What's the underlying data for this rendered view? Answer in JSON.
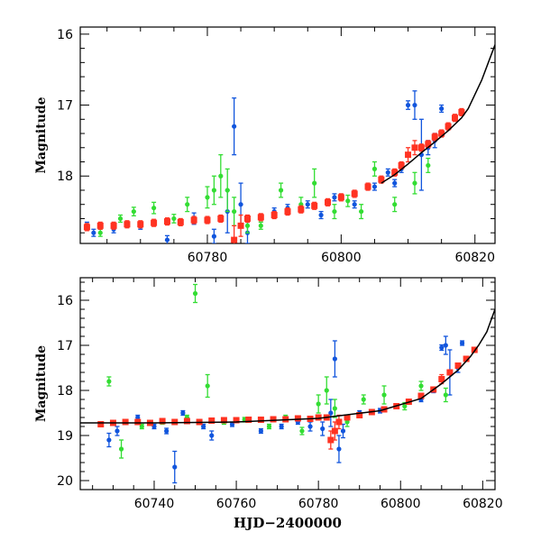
{
  "colors": {
    "blue": "#1155dd",
    "green": "#33dd33",
    "red": "#ff3322",
    "fit": "#000000"
  },
  "chart_data": [
    {
      "type": "scatter",
      "title": "",
      "xlabel": "",
      "ylabel": "Magnitude",
      "xlim": [
        60761,
        60823
      ],
      "ylim": [
        18.95,
        15.9
      ],
      "y_inverted": true,
      "xticks": [
        60780,
        60800,
        60820
      ],
      "yticks": [
        16,
        17,
        18
      ],
      "grid": false,
      "series": [
        {
          "color_key": "blue",
          "points": [
            [
              60762,
              18.7,
              0.05
            ],
            [
              60763,
              18.8,
              0.05
            ],
            [
              60766,
              18.75,
              0.05
            ],
            [
              60770,
              18.7,
              0.05
            ],
            [
              60774,
              18.9,
              0.06
            ],
            [
              60778,
              18.6,
              0.08
            ],
            [
              60781,
              18.85,
              0.1
            ],
            [
              60783,
              18.5,
              0.3
            ],
            [
              60784,
              17.3,
              0.4
            ],
            [
              60785,
              18.4,
              0.3
            ],
            [
              60786,
              18.8,
              0.15
            ],
            [
              60790,
              18.5,
              0.05
            ],
            [
              60792,
              18.45,
              0.05
            ],
            [
              60795,
              18.4,
              0.05
            ],
            [
              60797,
              18.55,
              0.05
            ],
            [
              60799,
              18.3,
              0.05
            ],
            [
              60802,
              18.4,
              0.05
            ],
            [
              60805,
              18.15,
              0.05
            ],
            [
              60807,
              17.95,
              0.05
            ],
            [
              60808,
              18.1,
              0.05
            ],
            [
              60809,
              17.9,
              0.05
            ],
            [
              60810,
              17.0,
              0.06
            ],
            [
              60811,
              17.0,
              0.2
            ],
            [
              60812,
              17.7,
              0.5
            ],
            [
              60813,
              17.6,
              0.1
            ],
            [
              60814,
              17.5,
              0.1
            ],
            [
              60815,
              17.05,
              0.05
            ]
          ]
        },
        {
          "color_key": "green",
          "points": [
            [
              60764,
              18.8,
              0.05
            ],
            [
              60767,
              18.6,
              0.05
            ],
            [
              60769,
              18.5,
              0.06
            ],
            [
              60772,
              18.45,
              0.08
            ],
            [
              60775,
              18.6,
              0.06
            ],
            [
              60777,
              18.4,
              0.1
            ],
            [
              60780,
              18.3,
              0.15
            ],
            [
              60781,
              18.2,
              0.2
            ],
            [
              60782,
              18.0,
              0.3
            ],
            [
              60783,
              18.2,
              0.3
            ],
            [
              60784,
              18.5,
              0.2
            ],
            [
              60786,
              18.7,
              0.1
            ],
            [
              60788,
              18.7,
              0.05
            ],
            [
              60791,
              18.2,
              0.1
            ],
            [
              60794,
              18.4,
              0.1
            ],
            [
              60796,
              18.1,
              0.2
            ],
            [
              60799,
              18.5,
              0.1
            ],
            [
              60801,
              18.35,
              0.08
            ],
            [
              60803,
              18.5,
              0.1
            ],
            [
              60805,
              17.9,
              0.1
            ],
            [
              60808,
              18.4,
              0.1
            ],
            [
              60811,
              18.1,
              0.15
            ],
            [
              60813,
              17.85,
              0.1
            ]
          ]
        },
        {
          "color_key": "red",
          "points": [
            [
              60762,
              18.72,
              0.05
            ],
            [
              60764,
              18.7,
              0.05
            ],
            [
              60766,
              18.7,
              0.05
            ],
            [
              60768,
              18.68,
              0.05
            ],
            [
              60770,
              18.68,
              0.05
            ],
            [
              60772,
              18.66,
              0.05
            ],
            [
              60774,
              18.64,
              0.05
            ],
            [
              60776,
              18.65,
              0.05
            ],
            [
              60778,
              18.62,
              0.05
            ],
            [
              60780,
              18.62,
              0.05
            ],
            [
              60782,
              18.6,
              0.05
            ],
            [
              60784,
              18.9,
              0.2
            ],
            [
              60785,
              18.7,
              0.15
            ],
            [
              60786,
              18.6,
              0.05
            ],
            [
              60788,
              18.58,
              0.05
            ],
            [
              60790,
              18.55,
              0.05
            ],
            [
              60792,
              18.5,
              0.05
            ],
            [
              60794,
              18.47,
              0.05
            ],
            [
              60796,
              18.42,
              0.05
            ],
            [
              60798,
              18.37,
              0.05
            ],
            [
              60800,
              18.3,
              0.05
            ],
            [
              60802,
              18.25,
              0.05
            ],
            [
              60804,
              18.15,
              0.05
            ],
            [
              60806,
              18.05,
              0.05
            ],
            [
              60808,
              17.95,
              0.05
            ],
            [
              60809,
              17.85,
              0.05
            ],
            [
              60810,
              17.7,
              0.1
            ],
            [
              60811,
              17.6,
              0.1
            ],
            [
              60812,
              17.6,
              0.05
            ],
            [
              60813,
              17.55,
              0.05
            ],
            [
              60814,
              17.45,
              0.05
            ],
            [
              60815,
              17.4,
              0.05
            ],
            [
              60816,
              17.3,
              0.05
            ],
            [
              60817,
              17.18,
              0.05
            ],
            [
              60818,
              17.1,
              0.05
            ]
          ]
        }
      ],
      "fit_curve": [
        [
          60806,
          18.1
        ],
        [
          60808,
          17.98
        ],
        [
          60810,
          17.83
        ],
        [
          60812,
          17.67
        ],
        [
          60814,
          17.52
        ],
        [
          60816,
          17.36
        ],
        [
          60818,
          17.18
        ],
        [
          60819,
          17.05
        ],
        [
          60820,
          16.85
        ],
        [
          60821,
          16.65
        ],
        [
          60822,
          16.4
        ],
        [
          60823,
          16.15
        ]
      ]
    },
    {
      "type": "scatter",
      "title": "",
      "xlabel": "HJD−2400000",
      "ylabel": "Magnitude",
      "xlim": [
        60722,
        60823
      ],
      "ylim": [
        20.2,
        15.5
      ],
      "y_inverted": true,
      "xticks": [
        60740,
        60760,
        60780,
        60800,
        60820
      ],
      "yticks": [
        16,
        17,
        18,
        19,
        20
      ],
      "grid": false,
      "series": [
        {
          "color_key": "blue",
          "points": [
            [
              60729,
              19.1,
              0.15
            ],
            [
              60731,
              18.9,
              0.1
            ],
            [
              60736,
              18.6,
              0.05
            ],
            [
              60740,
              18.8,
              0.05
            ],
            [
              60743,
              18.9,
              0.06
            ],
            [
              60745,
              19.7,
              0.35
            ],
            [
              60747,
              18.5,
              0.05
            ],
            [
              60752,
              18.8,
              0.05
            ],
            [
              60754,
              19.0,
              0.1
            ],
            [
              60759,
              18.75,
              0.05
            ],
            [
              60766,
              18.9,
              0.05
            ],
            [
              60771,
              18.8,
              0.05
            ],
            [
              60775,
              18.7,
              0.05
            ],
            [
              60778,
              18.8,
              0.1
            ],
            [
              60781,
              18.85,
              0.15
            ],
            [
              60783,
              18.5,
              0.3
            ],
            [
              60784,
              17.3,
              0.4
            ],
            [
              60785,
              19.3,
              0.3
            ],
            [
              60786,
              18.9,
              0.15
            ],
            [
              60790,
              18.5,
              0.05
            ],
            [
              60795,
              18.45,
              0.05
            ],
            [
              60799,
              18.35,
              0.05
            ],
            [
              60805,
              18.2,
              0.05
            ],
            [
              60808,
              18.0,
              0.05
            ],
            [
              60810,
              17.05,
              0.06
            ],
            [
              60811,
              17.0,
              0.2
            ],
            [
              60812,
              17.6,
              0.5
            ],
            [
              60814,
              17.5,
              0.1
            ],
            [
              60815,
              16.95,
              0.05
            ]
          ]
        },
        {
          "color_key": "green",
          "points": [
            [
              60729,
              17.8,
              0.1
            ],
            [
              60732,
              19.3,
              0.2
            ],
            [
              60737,
              18.8,
              0.05
            ],
            [
              60742,
              18.7,
              0.05
            ],
            [
              60748,
              18.6,
              0.05
            ],
            [
              60750,
              15.85,
              0.2
            ],
            [
              60753,
              17.9,
              0.25
            ],
            [
              60757,
              18.7,
              0.05
            ],
            [
              60762,
              18.65,
              0.05
            ],
            [
              60768,
              18.8,
              0.05
            ],
            [
              60772,
              18.6,
              0.05
            ],
            [
              60776,
              18.9,
              0.08
            ],
            [
              60780,
              18.3,
              0.2
            ],
            [
              60782,
              18.0,
              0.3
            ],
            [
              60784,
              18.4,
              0.2
            ],
            [
              60787,
              18.7,
              0.1
            ],
            [
              60791,
              18.2,
              0.1
            ],
            [
              60796,
              18.1,
              0.2
            ],
            [
              60801,
              18.35,
              0.08
            ],
            [
              60805,
              17.9,
              0.1
            ],
            [
              60811,
              18.1,
              0.15
            ]
          ]
        },
        {
          "color_key": "red",
          "points": [
            [
              60727,
              18.75,
              0.05
            ],
            [
              60730,
              18.72,
              0.05
            ],
            [
              60733,
              18.7,
              0.05
            ],
            [
              60736,
              18.7,
              0.05
            ],
            [
              60739,
              18.72,
              0.05
            ],
            [
              60742,
              18.68,
              0.05
            ],
            [
              60745,
              18.7,
              0.05
            ],
            [
              60748,
              18.68,
              0.05
            ],
            [
              60751,
              18.7,
              0.05
            ],
            [
              60754,
              18.67,
              0.05
            ],
            [
              60757,
              18.66,
              0.05
            ],
            [
              60760,
              18.66,
              0.05
            ],
            [
              60763,
              18.65,
              0.05
            ],
            [
              60766,
              18.65,
              0.05
            ],
            [
              60769,
              18.64,
              0.05
            ],
            [
              60772,
              18.64,
              0.05
            ],
            [
              60775,
              18.62,
              0.05
            ],
            [
              60778,
              18.63,
              0.05
            ],
            [
              60780,
              18.6,
              0.05
            ],
            [
              60782,
              18.6,
              0.05
            ],
            [
              60783,
              19.1,
              0.2
            ],
            [
              60784,
              18.9,
              0.2
            ],
            [
              60785,
              18.7,
              0.15
            ],
            [
              60787,
              18.6,
              0.05
            ],
            [
              60790,
              18.55,
              0.05
            ],
            [
              60793,
              18.48,
              0.05
            ],
            [
              60796,
              18.42,
              0.05
            ],
            [
              60799,
              18.35,
              0.05
            ],
            [
              60802,
              18.25,
              0.05
            ],
            [
              60805,
              18.12,
              0.05
            ],
            [
              60808,
              17.98,
              0.05
            ],
            [
              60810,
              17.75,
              0.1
            ],
            [
              60812,
              17.6,
              0.05
            ],
            [
              60814,
              17.45,
              0.05
            ],
            [
              60816,
              17.3,
              0.05
            ],
            [
              60818,
              17.1,
              0.05
            ]
          ]
        }
      ],
      "fit_curve": [
        [
          60722,
          18.72
        ],
        [
          60740,
          18.72
        ],
        [
          60760,
          18.7
        ],
        [
          60780,
          18.62
        ],
        [
          60795,
          18.45
        ],
        [
          60805,
          18.18
        ],
        [
          60810,
          17.85
        ],
        [
          60814,
          17.55
        ],
        [
          60817,
          17.25
        ],
        [
          60819,
          17.0
        ],
        [
          60821,
          16.7
        ],
        [
          60823,
          16.2
        ]
      ]
    }
  ]
}
